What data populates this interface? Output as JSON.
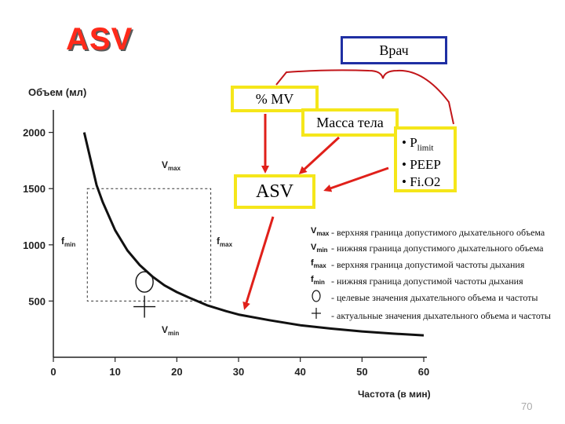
{
  "title": "ASV",
  "boxes": {
    "doctor": "Врач",
    "mv": "% MV",
    "mass": "Масса тела",
    "asv": "ASV",
    "params": [
      "P",
      "limit",
      "PEEP",
      "Fi.O2"
    ],
    "bullet": "•"
  },
  "chart_data": {
    "type": "line",
    "xlabel": "Частота (в мин)",
    "ylabel": "Объем (мл)",
    "xlim": [
      0,
      60
    ],
    "ylim": [
      0,
      2200
    ],
    "xticks": [
      0,
      10,
      20,
      30,
      40,
      50,
      60
    ],
    "yticks": [
      500,
      1000,
      1500,
      2000
    ],
    "series": [
      {
        "name": "curve",
        "x": [
          5,
          7,
          8,
          10,
          12,
          14,
          16,
          18,
          20,
          22,
          25,
          28,
          30,
          35,
          40,
          45,
          50,
          55,
          60
        ],
        "y": [
          2000,
          1530,
          1380,
          1130,
          950,
          820,
          720,
          640,
          580,
          530,
          460,
          410,
          380,
          330,
          285,
          255,
          230,
          210,
          195
        ]
      }
    ],
    "annotations": {
      "vmax": "V",
      "vmax_sub": "max",
      "vmin": "V",
      "vmin_sub": "min",
      "fmin": "f",
      "fmin_sub": "min",
      "fmax": "f",
      "fmax_sub": "max"
    },
    "target_rect": {
      "x": [
        5.5,
        25.5
      ],
      "y": [
        500,
        1500
      ]
    },
    "target_point": {
      "x": 14,
      "y": 670
    },
    "actual_point": {
      "x": 14,
      "y": 450
    }
  },
  "legend": [
    {
      "sym": "V",
      "sub": "max",
      "text": "- верхняя граница допустимого дыхательного объема"
    },
    {
      "sym": "V",
      "sub": "min",
      "text": "- нижняя граница допустимого дыхательного объема"
    },
    {
      "sym": "f",
      "sub": "max",
      "text": "- верхняя граница допустимой частоты дыхания"
    },
    {
      "sym": "f",
      "sub": "min",
      "text": "- нижняя граница допустимой частоты дыхания"
    },
    {
      "sym": "circle",
      "sub": "",
      "text": "- целевые значения дыхательного объема и частоты"
    },
    {
      "sym": "cross",
      "sub": "",
      "text": "- актуальные значения дыхательного объема и частоты"
    }
  ],
  "page_number": "70",
  "colors": {
    "title": "#ff2a1a",
    "doctor_border": "#1f2fa3",
    "box_border": "#f5e61a",
    "arrow": "#e0201a",
    "bracket": "#c2161a"
  }
}
